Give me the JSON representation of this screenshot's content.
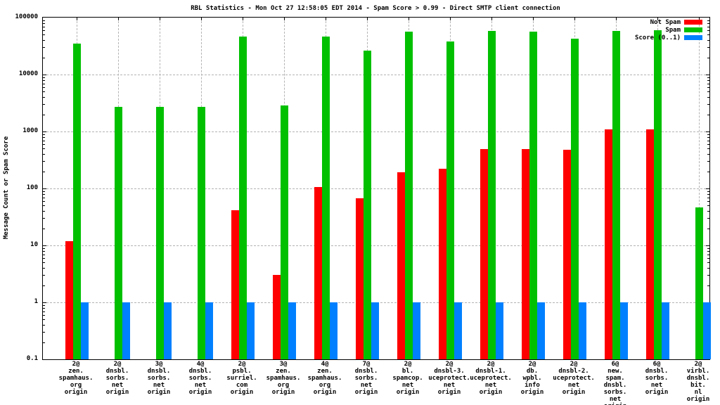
{
  "title": "RBL Statistics - Mon Oct 27 12:58:05 EDT 2014 - Spam Score > 0.99 - Direct SMTP client connection",
  "chart_data": {
    "type": "bar",
    "yscale": "log",
    "title": "RBL Statistics - Mon Oct 27 12:58:05 EDT 2014 - Spam Score > 0.99 - Direct SMTP client connection",
    "xlabel": "",
    "ylabel": "Message Count or Spam Score",
    "ylim": [
      0.1,
      100000
    ],
    "ytick_labels": [
      "100000",
      "10000",
      "1000",
      "100",
      "10",
      "1",
      "0.1"
    ],
    "ytick_values": [
      100000,
      10000,
      1000,
      100,
      10,
      1,
      0.1
    ],
    "grid": true,
    "legend_position": "top-right",
    "categories": [
      [
        "2@",
        "zen.",
        "spamhaus.",
        "org",
        "origin"
      ],
      [
        "2@",
        "dnsbl.",
        "sorbs.",
        "net",
        "origin"
      ],
      [
        "3@",
        "dnsbl.",
        "sorbs.",
        "net",
        "origin"
      ],
      [
        "4@",
        "dnsbl.",
        "sorbs.",
        "net",
        "origin"
      ],
      [
        "2@",
        "psbl.",
        "surriel.",
        "com",
        "origin"
      ],
      [
        "3@",
        "zen.",
        "spamhaus.",
        "org",
        "origin"
      ],
      [
        "4@",
        "zen.",
        "spamhaus.",
        "org",
        "origin"
      ],
      [
        "7@",
        "dnsbl.",
        "sorbs.",
        "net",
        "origin"
      ],
      [
        "2@",
        "bl.",
        "spamcop.",
        "net",
        "origin"
      ],
      [
        "2@",
        "dnsbl-3.",
        "uceprotect.",
        "net",
        "origin"
      ],
      [
        "2@",
        "dnsbl-1.",
        "uceprotect.",
        "net",
        "origin"
      ],
      [
        "2@",
        "db.",
        "wpbl.",
        "info",
        "origin"
      ],
      [
        "2@",
        "dnsbl-2.",
        "uceprotect.",
        "net",
        "origin"
      ],
      [
        "6@",
        "new.",
        "spam.",
        "dnsbl.",
        "sorbs.",
        "net",
        "origin"
      ],
      [
        "6@",
        "dnsbl.",
        "sorbs.",
        "net",
        "origin"
      ],
      [
        "2@",
        "virbl.",
        "dnsbl.",
        "bit.",
        "nl",
        "origin"
      ]
    ],
    "series": [
      {
        "name": "Not Spam",
        "color": "#ff0000",
        "values": [
          12,
          null,
          null,
          null,
          41,
          3,
          107,
          67,
          190,
          220,
          490,
          490,
          480,
          1100,
          1100,
          null
        ]
      },
      {
        "name": "Spam",
        "color": "#00c000",
        "values": [
          35000,
          2700,
          2700,
          2700,
          47000,
          2900,
          47000,
          26000,
          56000,
          38000,
          59000,
          56000,
          43000,
          59000,
          60000,
          46
        ]
      },
      {
        "name": "Score (0..1)",
        "color": "#0080ff",
        "values": [
          1,
          1,
          1,
          1,
          1,
          1,
          1,
          1,
          1,
          1,
          1,
          1,
          1,
          1,
          1,
          1
        ]
      }
    ]
  },
  "colors": {
    "grid": "#b3b3b3",
    "axis": "#000000",
    "background": "#ffffff"
  }
}
